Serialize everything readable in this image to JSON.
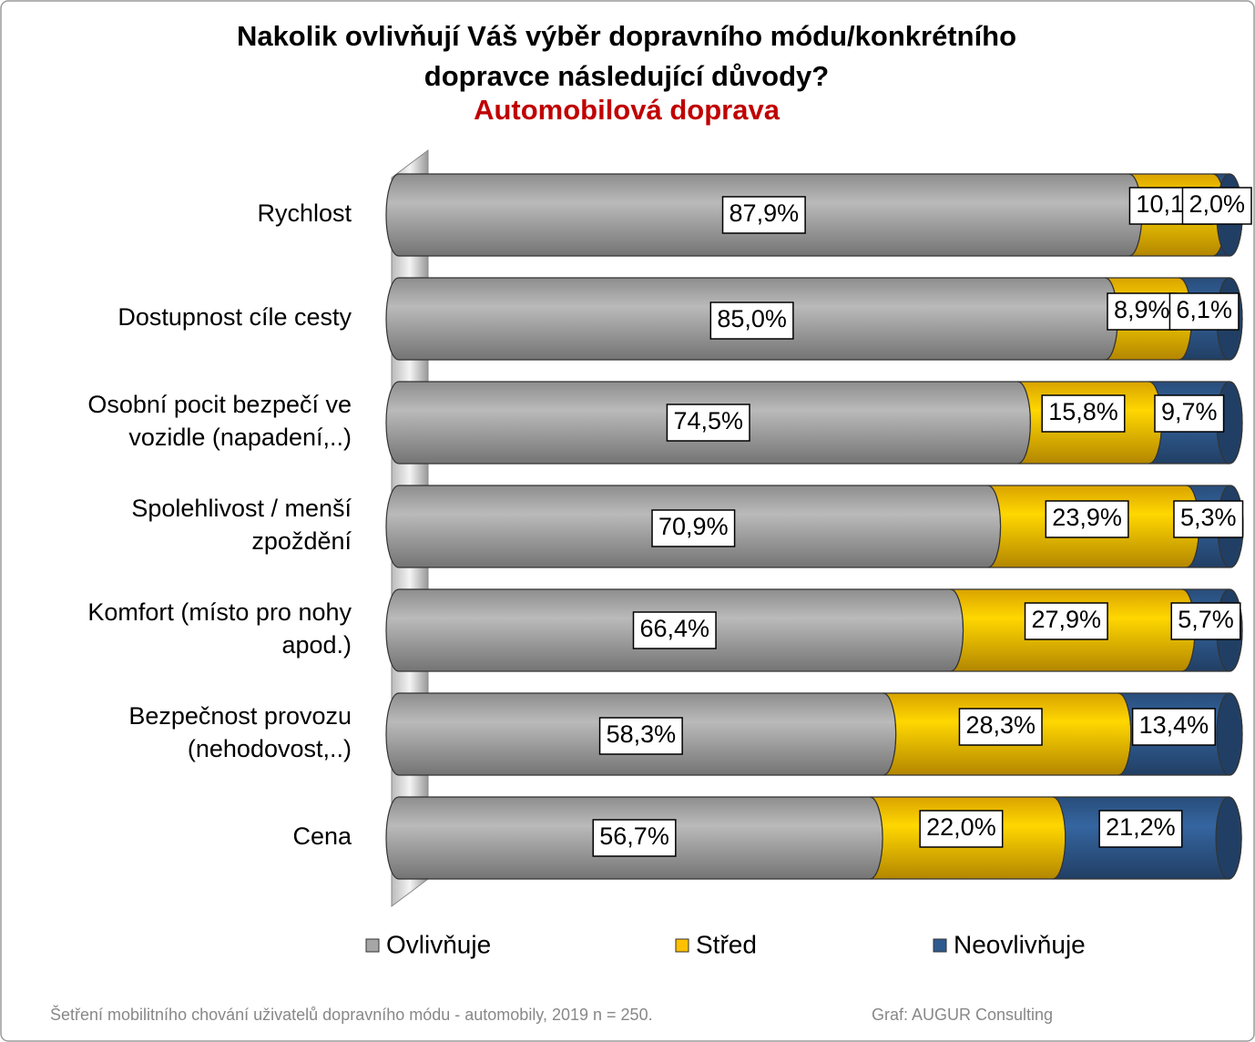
{
  "chart_data": {
    "type": "stacked-bar-horizontal",
    "title": "Nakolik ovlivňují Váš výběr dopravního módu/konkrétního dopravce následující důvody?",
    "subtitle": "Automobilová doprava",
    "categories": [
      "Rychlost",
      "Dostupnost cíle cesty",
      "Osobní pocit bezpečí ve vozidle (napadení,..)",
      "Spolehlivost / menší zpoždění",
      "Komfort (místo pro nohy apod.)",
      "Bezpečnost provozu (nehodovost,..)",
      "Cena"
    ],
    "series": [
      {
        "name": "Ovlivňuje",
        "color": "#a6a6a6",
        "values": [
          87.9,
          85.0,
          74.5,
          70.9,
          66.4,
          58.3,
          56.7
        ],
        "value_labels": [
          "87,9%",
          "85,0%",
          "74,5%",
          "70,9%",
          "66,4%",
          "58,3%",
          "56,7%"
        ]
      },
      {
        "name": "Střed",
        "color": "#ffc000",
        "values": [
          10.1,
          8.9,
          15.8,
          23.9,
          27.9,
          28.3,
          22.0
        ],
        "value_labels": [
          "10,1%",
          "8,9%",
          "15,8%",
          "23,9%",
          "27,9%",
          "28,3%",
          "22,0%"
        ]
      },
      {
        "name": "Neovlivňuje",
        "color": "#2f5a8f",
        "values": [
          2.0,
          6.1,
          9.7,
          5.3,
          5.7,
          13.4,
          21.2
        ],
        "value_labels": [
          "2,0%",
          "6,1%",
          "9,7%",
          "5,3%",
          "5,7%",
          "13,4%",
          "21,2%"
        ]
      }
    ],
    "xlim": [
      0,
      100
    ],
    "legend": "bottom",
    "source": "Šetření mobilitního chování uživatelů dopravního módu - automobily, 2019 n = 250.",
    "credit": "Graf: AUGUR Consulting"
  }
}
